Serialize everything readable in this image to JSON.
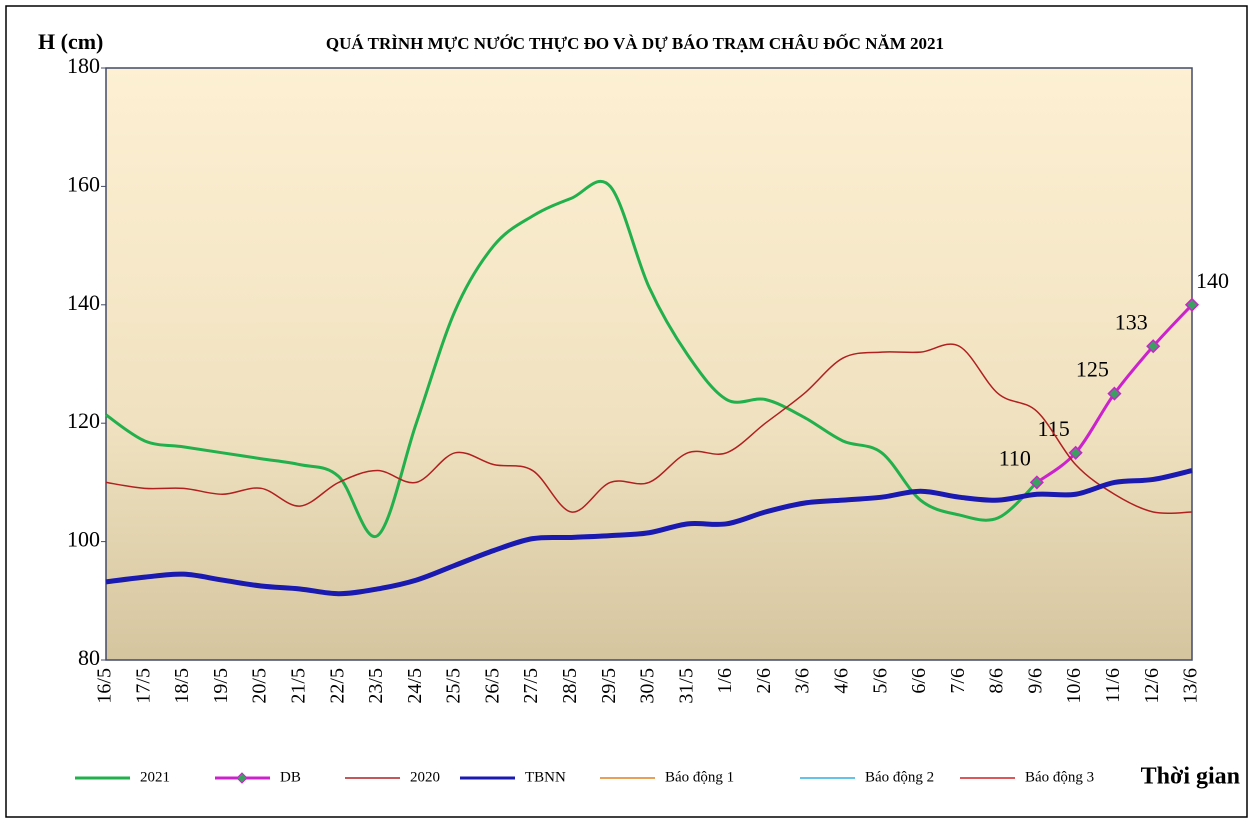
{
  "chart_data": {
    "type": "line",
    "title": "QUÁ TRÌNH MỰC NƯỚC THỰC ĐO VÀ DỰ BÁO TRẠM CHÂU ĐỐC NĂM  2021",
    "y_label": "H (cm)",
    "x_label": "Thời gian",
    "categories": [
      "16/5",
      "17/5",
      "18/5",
      "19/5",
      "20/5",
      "21/5",
      "22/5",
      "23/5",
      "24/5",
      "25/5",
      "26/5",
      "27/5",
      "28/5",
      "29/5",
      "30/5",
      "31/5",
      "1/6",
      "2/6",
      "3/6",
      "4/6",
      "5/6",
      "6/6",
      "7/6",
      "8/6",
      "9/6",
      "10/6",
      "11/6",
      "12/6",
      "13/6"
    ],
    "ylim": [
      80,
      180
    ],
    "yticks": [
      80,
      100,
      120,
      140,
      160,
      180
    ],
    "series": [
      {
        "name": "2021",
        "color": "#22b04c",
        "values": [
          121.4,
          117,
          116,
          115,
          114,
          113,
          111,
          101,
          120,
          139,
          150,
          155,
          158,
          160,
          143,
          131.5,
          124,
          124,
          121,
          117,
          115,
          107,
          104.5,
          104,
          110,
          null,
          null,
          null,
          null
        ]
      },
      {
        "name": "DB",
        "color": "#cc22cc",
        "marker": "diamond",
        "marker_color": "#3aa060",
        "data_labels": true,
        "values": [
          null,
          null,
          null,
          null,
          null,
          null,
          null,
          null,
          null,
          null,
          null,
          null,
          null,
          null,
          null,
          null,
          null,
          null,
          null,
          null,
          null,
          null,
          null,
          null,
          110,
          115,
          125,
          133,
          140
        ]
      },
      {
        "name": "2020",
        "color": "#b02020",
        "values": [
          110,
          109,
          109,
          108,
          109,
          106,
          110,
          112,
          110,
          115,
          113,
          112,
          105,
          110,
          110,
          115,
          115,
          120,
          125,
          131,
          132,
          132,
          133,
          125,
          122,
          113,
          108,
          105,
          105
        ]
      },
      {
        "name": "TBNN",
        "color": "#1a1ab0",
        "values": [
          93.2,
          94,
          94.5,
          93.5,
          92.5,
          92,
          91.2,
          92,
          93.5,
          96,
          98.5,
          100.5,
          100.7,
          101,
          101.5,
          103,
          103,
          105,
          106.5,
          107,
          107.5,
          108.5,
          107.5,
          107,
          108,
          108,
          110,
          110.5,
          112
        ]
      },
      {
        "name": "Báo động 1",
        "color": "#e08020",
        "values": [
          null,
          null,
          null,
          null,
          null,
          null,
          null,
          null,
          null,
          null,
          null,
          null,
          null,
          null,
          null,
          null,
          null,
          null,
          null,
          null,
          null,
          null,
          null,
          null,
          null,
          null,
          null,
          null,
          null
        ]
      },
      {
        "name": "Báo động 2",
        "color": "#30b0e0",
        "values": [
          null,
          null,
          null,
          null,
          null,
          null,
          null,
          null,
          null,
          null,
          null,
          null,
          null,
          null,
          null,
          null,
          null,
          null,
          null,
          null,
          null,
          null,
          null,
          null,
          null,
          null,
          null,
          null,
          null
        ]
      },
      {
        "name": "Báo động 3",
        "color": "#d02020",
        "values": [
          null,
          null,
          null,
          null,
          null,
          null,
          null,
          null,
          null,
          null,
          null,
          null,
          null,
          null,
          null,
          null,
          null,
          null,
          null,
          null,
          null,
          null,
          null,
          null,
          null,
          null,
          null,
          null,
          null
        ]
      }
    ]
  }
}
